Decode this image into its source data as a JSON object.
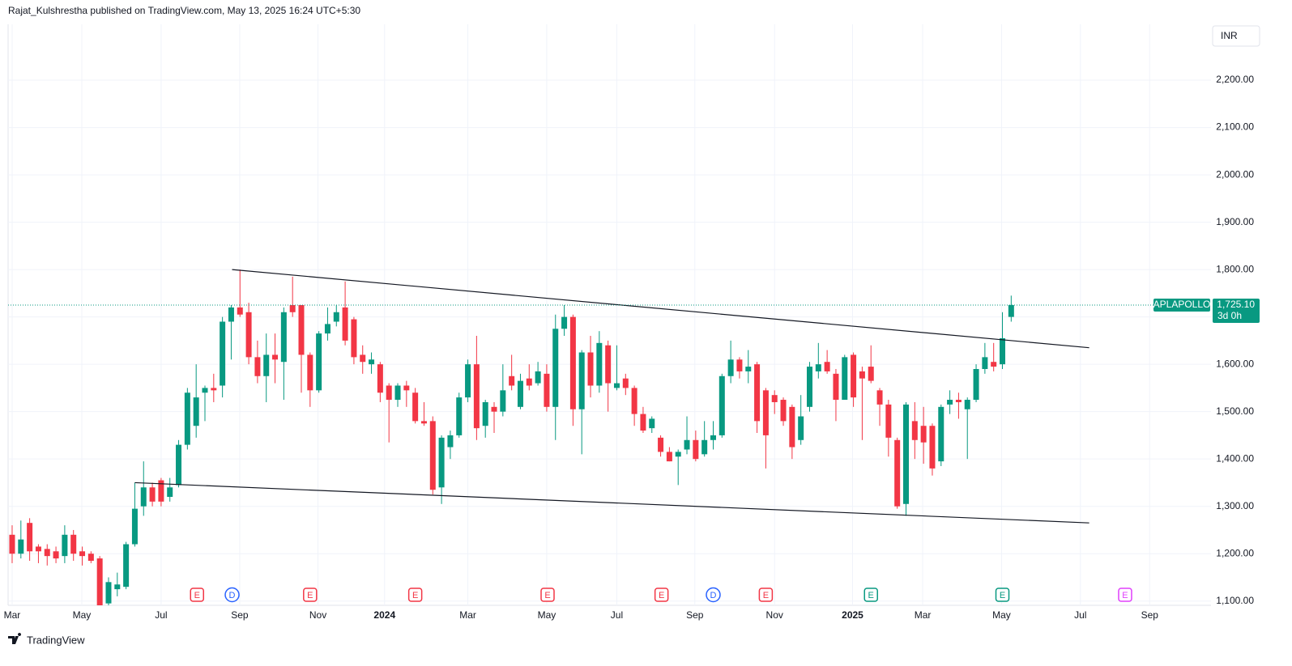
{
  "chart_data": {
    "type": "candlestick",
    "title": "Rajat_Kulshrestha published on TradingView.com, May 13, 2025 16:24 UTC+5:30",
    "currency": "INR",
    "brand": "TradingView",
    "up_color": "#089981",
    "down_color": "#f23645",
    "grid": true,
    "open": [
      1240,
      1200,
      1265,
      1215,
      1210,
      1205,
      1195,
      1240,
      1205,
      1200,
      1190,
      1095,
      1125,
      1130,
      1220,
      1300,
      1340,
      1355,
      1320,
      1345,
      1430,
      1470,
      1540,
      1550,
      1555,
      1690,
      1720,
      1710,
      1615,
      1575,
      1620,
      1605,
      1725,
      1725,
      1620,
      1545,
      1665,
      1690,
      1720,
      1695,
      1620,
      1600,
      1600,
      1555,
      1525,
      1555,
      1540,
      1480,
      1480,
      1340,
      1425,
      1450,
      1530,
      1600,
      1470,
      1510,
      1500,
      1575,
      1510,
      1570,
      1560,
      1580,
      1510,
      1675,
      1700,
      1505,
      1625,
      1555,
      1640,
      1550,
      1570,
      1550,
      1495,
      1465,
      1445,
      1415,
      1405,
      1420,
      1440,
      1410,
      1440,
      1450,
      1575,
      1610,
      1585,
      1600,
      1545,
      1535,
      1525,
      1510,
      1440,
      1510,
      1585,
      1605,
      1580,
      1525,
      1620,
      1585,
      1595,
      1545,
      1515,
      1440,
      1305,
      1480,
      1470,
      1470,
      1395,
      1515,
      1525,
      1505,
      1525,
      1590,
      1605,
      1600,
      1700
    ],
    "high": [
      1260,
      1270,
      1275,
      1220,
      1220,
      1215,
      1260,
      1250,
      1215,
      1205,
      1195,
      1150,
      1160,
      1225,
      1350,
      1395,
      1350,
      1360,
      1360,
      1440,
      1550,
      1600,
      1555,
      1580,
      1700,
      1725,
      1800,
      1730,
      1650,
      1665,
      1665,
      1720,
      1785,
      1725,
      1625,
      1670,
      1720,
      1725,
      1775,
      1700,
      1640,
      1625,
      1605,
      1560,
      1560,
      1565,
      1550,
      1520,
      1490,
      1450,
      1460,
      1540,
      1610,
      1660,
      1525,
      1520,
      1600,
      1620,
      1580,
      1600,
      1605,
      1600,
      1705,
      1725,
      1705,
      1630,
      1660,
      1670,
      1650,
      1640,
      1580,
      1555,
      1510,
      1490,
      1450,
      1425,
      1420,
      1490,
      1460,
      1480,
      1480,
      1580,
      1650,
      1615,
      1630,
      1605,
      1550,
      1545,
      1530,
      1515,
      1535,
      1605,
      1645,
      1630,
      1590,
      1620,
      1625,
      1595,
      1640,
      1550,
      1525,
      1445,
      1520,
      1520,
      1510,
      1475,
      1515,
      1545,
      1540,
      1530,
      1600,
      1645,
      1645,
      1710,
      1745
    ],
    "low": [
      1180,
      1190,
      1185,
      1180,
      1175,
      1180,
      1180,
      1185,
      1175,
      1180,
      1080,
      1080,
      1110,
      1125,
      1215,
      1280,
      1300,
      1300,
      1310,
      1340,
      1420,
      1445,
      1480,
      1520,
      1530,
      1610,
      1700,
      1600,
      1560,
      1520,
      1560,
      1525,
      1700,
      1540,
      1510,
      1540,
      1650,
      1680,
      1640,
      1600,
      1580,
      1580,
      1520,
      1435,
      1510,
      1510,
      1475,
      1470,
      1325,
      1305,
      1400,
      1445,
      1520,
      1440,
      1445,
      1455,
      1490,
      1545,
      1505,
      1545,
      1555,
      1500,
      1440,
      1660,
      1470,
      1410,
      1530,
      1540,
      1500,
      1545,
      1535,
      1470,
      1455,
      1455,
      1405,
      1395,
      1345,
      1410,
      1395,
      1405,
      1420,
      1445,
      1560,
      1570,
      1560,
      1455,
      1380,
      1495,
      1470,
      1400,
      1430,
      1500,
      1570,
      1580,
      1480,
      1525,
      1510,
      1440,
      1560,
      1470,
      1405,
      1295,
      1280,
      1400,
      1390,
      1365,
      1385,
      1495,
      1485,
      1400,
      1520,
      1580,
      1585,
      1590,
      1690
    ],
    "close": [
      1200,
      1230,
      1205,
      1205,
      1195,
      1190,
      1240,
      1200,
      1195,
      1185,
      1090,
      1140,
      1135,
      1220,
      1295,
      1340,
      1310,
      1310,
      1340,
      1430,
      1540,
      1530,
      1550,
      1545,
      1690,
      1720,
      1705,
      1615,
      1575,
      1620,
      1610,
      1710,
      1710,
      1620,
      1545,
      1665,
      1685,
      1710,
      1650,
      1615,
      1605,
      1610,
      1540,
      1525,
      1555,
      1545,
      1480,
      1475,
      1335,
      1445,
      1450,
      1530,
      1600,
      1465,
      1520,
      1500,
      1545,
      1555,
      1565,
      1555,
      1585,
      1510,
      1675,
      1700,
      1505,
      1625,
      1555,
      1645,
      1560,
      1560,
      1550,
      1495,
      1460,
      1485,
      1415,
      1395,
      1415,
      1440,
      1400,
      1440,
      1450,
      1575,
      1610,
      1585,
      1595,
      1480,
      1450,
      1520,
      1480,
      1425,
      1490,
      1595,
      1600,
      1585,
      1525,
      1615,
      1530,
      1570,
      1565,
      1515,
      1445,
      1300,
      1515,
      1440,
      1435,
      1380,
      1510,
      1525,
      1520,
      1525,
      1590,
      1615,
      1595,
      1655,
      1725.1
    ],
    "xlim": [
      -0.46,
      136.8
    ],
    "xticks": [
      {
        "value": 0,
        "label": "Mar"
      },
      {
        "value": 7.95,
        "label": "May"
      },
      {
        "value": 17,
        "label": "Jul"
      },
      {
        "value": 25.97,
        "label": "Sep"
      },
      {
        "value": 34.9,
        "label": "Nov"
      },
      {
        "value": 42.5,
        "label": "2024"
      },
      {
        "value": 52,
        "label": "Mar"
      },
      {
        "value": 61,
        "label": "May"
      },
      {
        "value": 69,
        "label": "Jul"
      },
      {
        "value": 77.9,
        "label": "Sep"
      },
      {
        "value": 87,
        "label": "Nov"
      },
      {
        "value": 95.9,
        "label": "2025"
      },
      {
        "value": 103.9,
        "label": "Mar"
      },
      {
        "value": 112.9,
        "label": "May"
      },
      {
        "value": 121.9,
        "label": "Jul"
      },
      {
        "value": 129.8,
        "label": "Sep"
      }
    ],
    "ylim": [
      1091,
      2318
    ],
    "yticks": [
      {
        "value": 1100,
        "label": "1,100.00"
      },
      {
        "value": 1200,
        "label": "1,200.00"
      },
      {
        "value": 1300,
        "label": "1,300.00"
      },
      {
        "value": 1400,
        "label": "1,400.00"
      },
      {
        "value": 1500,
        "label": "1,500.00"
      },
      {
        "value": 1600,
        "label": "1,600.00"
      },
      {
        "value": 1700,
        "label": "1,700.00"
      },
      {
        "value": 1800,
        "label": "1,800.00"
      },
      {
        "value": 1900,
        "label": "1,900.00"
      },
      {
        "value": 2000,
        "label": "2,000.00"
      },
      {
        "value": 2100,
        "label": "2,100.00"
      },
      {
        "value": 2200,
        "label": "2,200.00"
      }
    ],
    "trendlines": [
      {
        "x": [
          25.1,
          122.9
        ],
        "y": [
          1800,
          1635
        ]
      },
      {
        "x": [
          14,
          122.9
        ],
        "y": [
          1350,
          1265
        ]
      }
    ],
    "last_price": {
      "symbol": "APLAPOLLO",
      "value": 1725.1,
      "label": "1,725.10",
      "countdown": "3d 0h"
    },
    "events": [
      {
        "x": 21.1,
        "label": "E",
        "color": "#f23645",
        "shape": "square"
      },
      {
        "x": 25.1,
        "label": "D",
        "color": "#2962ff",
        "shape": "circle"
      },
      {
        "x": 34,
        "label": "E",
        "color": "#f23645",
        "shape": "square"
      },
      {
        "x": 46,
        "label": "E",
        "color": "#f23645",
        "shape": "square"
      },
      {
        "x": 61.1,
        "label": "E",
        "color": "#f23645",
        "shape": "square"
      },
      {
        "x": 74.1,
        "label": "E",
        "color": "#f23645",
        "shape": "square"
      },
      {
        "x": 80,
        "label": "D",
        "color": "#2962ff",
        "shape": "circle"
      },
      {
        "x": 86,
        "label": "E",
        "color": "#f23645",
        "shape": "square"
      },
      {
        "x": 98,
        "label": "E",
        "color": "#089981",
        "shape": "square"
      },
      {
        "x": 113,
        "label": "E",
        "color": "#089981",
        "shape": "square"
      },
      {
        "x": 127,
        "label": "E",
        "color": "#e040fb",
        "shape": "square"
      }
    ]
  }
}
